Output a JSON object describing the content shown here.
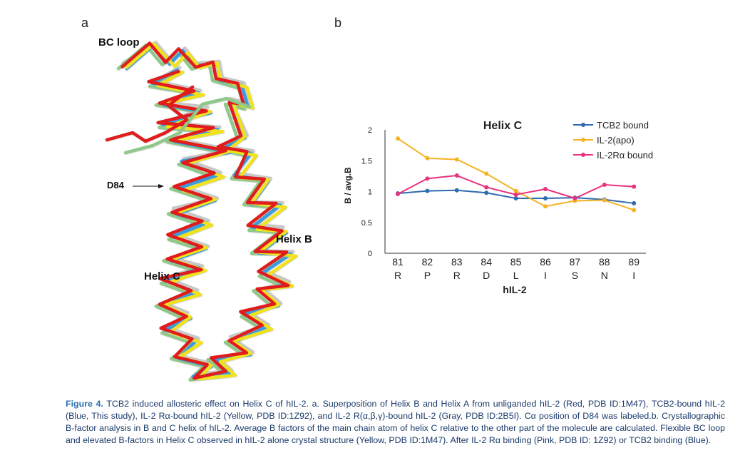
{
  "panel_a": {
    "letter": "a",
    "labels": {
      "bc_loop": "BC loop",
      "d84": "D84",
      "helix_b": "Helix B",
      "helix_c": "Helix C"
    },
    "colors": {
      "red": "#e01b1b",
      "blue": "#3a9be0",
      "yellow": "#f2e21a",
      "gray": "#c8c8c8",
      "green": "#8fc98a"
    }
  },
  "panel_b": {
    "letter": "b"
  },
  "chart_data": {
    "type": "line",
    "title": "Helix C",
    "xlabel": "hIL-2",
    "ylabel": "B / avg.B",
    "ylim": [
      0,
      2
    ],
    "yticks": [
      "0",
      "0.5",
      "1",
      "1.5",
      "2"
    ],
    "x": [
      "81",
      "82",
      "83",
      "84",
      "85",
      "86",
      "87",
      "88",
      "89"
    ],
    "residues": [
      "R",
      "P",
      "R",
      "D",
      "L",
      "I",
      "S",
      "N",
      "I"
    ],
    "legend_position": "top-right",
    "series": [
      {
        "name": "TCB2 bound",
        "color": "#2e6bb0",
        "values": [
          0.97,
          1.01,
          1.02,
          0.98,
          0.89,
          0.89,
          0.9,
          0.87,
          0.81
        ]
      },
      {
        "name": "IL-2(apo)",
        "color": "#f5b324",
        "values": [
          1.86,
          1.54,
          1.52,
          1.29,
          1.01,
          0.76,
          0.85,
          0.86,
          0.7
        ]
      },
      {
        "name": "IL-2Rα bound",
        "color": "#e8327c",
        "values": [
          0.96,
          1.21,
          1.26,
          1.07,
          0.95,
          1.04,
          0.89,
          1.11,
          1.08
        ]
      }
    ]
  },
  "caption": {
    "label": "Figure 4.",
    "text": "TCB2 induced allosteric effect on Helix C of hIL-2. a. Superposition of Helix B and Helix A from unliganded hIL-2 (Red, PDB ID:1M47), TCB2-bound hIL-2 (Blue, This study), IL-2 Rα-bound hIL-2 (Yellow, PDB ID:1Z92), and IL-2 R(α,β,γ)-bound hIL-2 (Gray, PDB ID:2B5I). Cα position of D84 was labeled.b. Crystallographic B-factor analysis in B and C helix of hIL-2. Average B factors of the main chain atom of helix C relative to the other part of the molecule are calculated. Flexible BC loop and elevated B-factors in Helix C observed in hIL-2 alone crystal structure (Yellow, PDB ID:1M47). After IL-2 Rα binding (Pink, PDB ID: 1Z92) or TCB2 binding (Blue)."
  }
}
